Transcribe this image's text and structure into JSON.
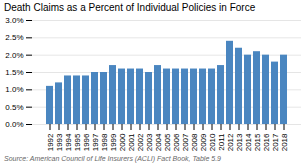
{
  "chart_data": {
    "type": "bar",
    "title": "Death Claims as a Percent of Individual Policies in Force",
    "source": "Source: American Council of Life Insurers (ACLI) Fact Book, Table 5.9",
    "categories": [
      "1992",
      "1993",
      "1994",
      "1995",
      "1996",
      "1997",
      "1998",
      "1999",
      "2000",
      "2001",
      "2002",
      "2003",
      "2004",
      "2005",
      "2006",
      "2007",
      "2008",
      "2009",
      "2010",
      "2011",
      "2012",
      "2013",
      "2014",
      "2015",
      "2016",
      "2017",
      "2018"
    ],
    "values": [
      1.1,
      1.2,
      1.4,
      1.4,
      1.4,
      1.5,
      1.5,
      1.7,
      1.6,
      1.6,
      1.6,
      1.5,
      1.7,
      1.6,
      1.6,
      1.6,
      1.6,
      1.6,
      1.6,
      1.7,
      2.4,
      2.2,
      2.0,
      2.1,
      2.0,
      1.8,
      2.0
    ],
    "color": "#4a86c0",
    "ylim": [
      0,
      3.0
    ],
    "yticks": [
      {
        "value": 0.0,
        "label": "0.0%"
      },
      {
        "value": 0.5,
        "label": "0.5%"
      },
      {
        "value": 1.0,
        "label": "1.0%"
      },
      {
        "value": 1.5,
        "label": "1.5%"
      },
      {
        "value": 2.0,
        "label": "2.0%"
      },
      {
        "value": 2.5,
        "label": "2.5%"
      },
      {
        "value": 3.0,
        "label": "3.0%"
      }
    ],
    "grid": true
  }
}
